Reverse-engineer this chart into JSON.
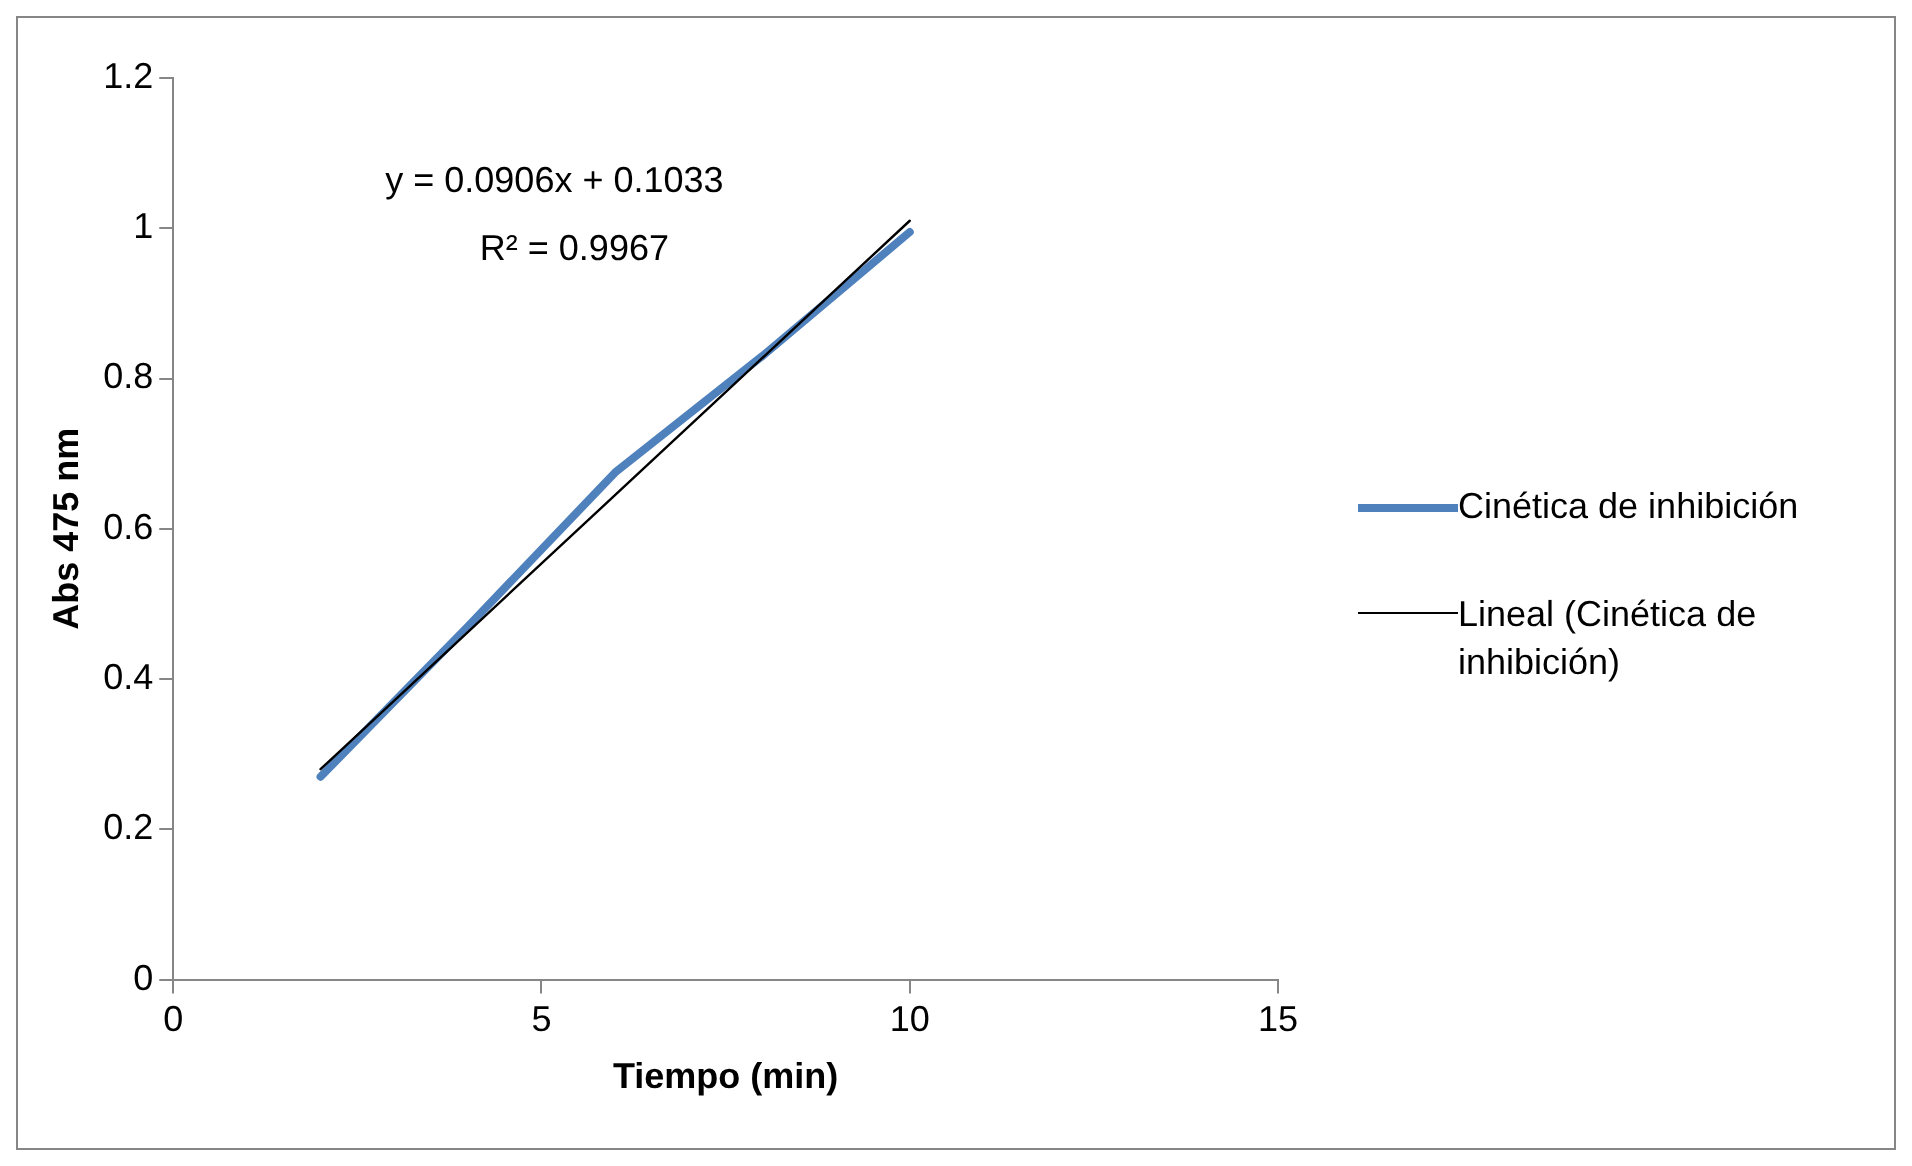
{
  "chart_data": {
    "type": "line",
    "xlabel": "Tiempo (min)",
    "ylabel": "Abs 475 nm",
    "x": [
      2,
      4,
      6,
      8,
      10
    ],
    "series": [
      {
        "name": "Cinética de inhibición",
        "color": "#4f81bd",
        "values": [
          0.27,
          0.47,
          0.675,
          0.83,
          0.995
        ]
      },
      {
        "name": "Lineal (Cinética de inhibición)",
        "color": "#000000",
        "x": [
          2,
          10
        ],
        "values": [
          0.28,
          1.01
        ]
      }
    ],
    "xlim": [
      0,
      15
    ],
    "xticks": [
      0,
      5,
      10,
      15
    ],
    "ylim": [
      0,
      1.2
    ],
    "yticks": [
      0,
      0.2,
      0.4,
      0.6,
      0.8,
      1,
      1.2
    ],
    "grid": false,
    "legend": "right",
    "marker": "none",
    "annotations": [
      "y = 0.0906x + 0.1033",
      "R² = 0.9967"
    ]
  }
}
